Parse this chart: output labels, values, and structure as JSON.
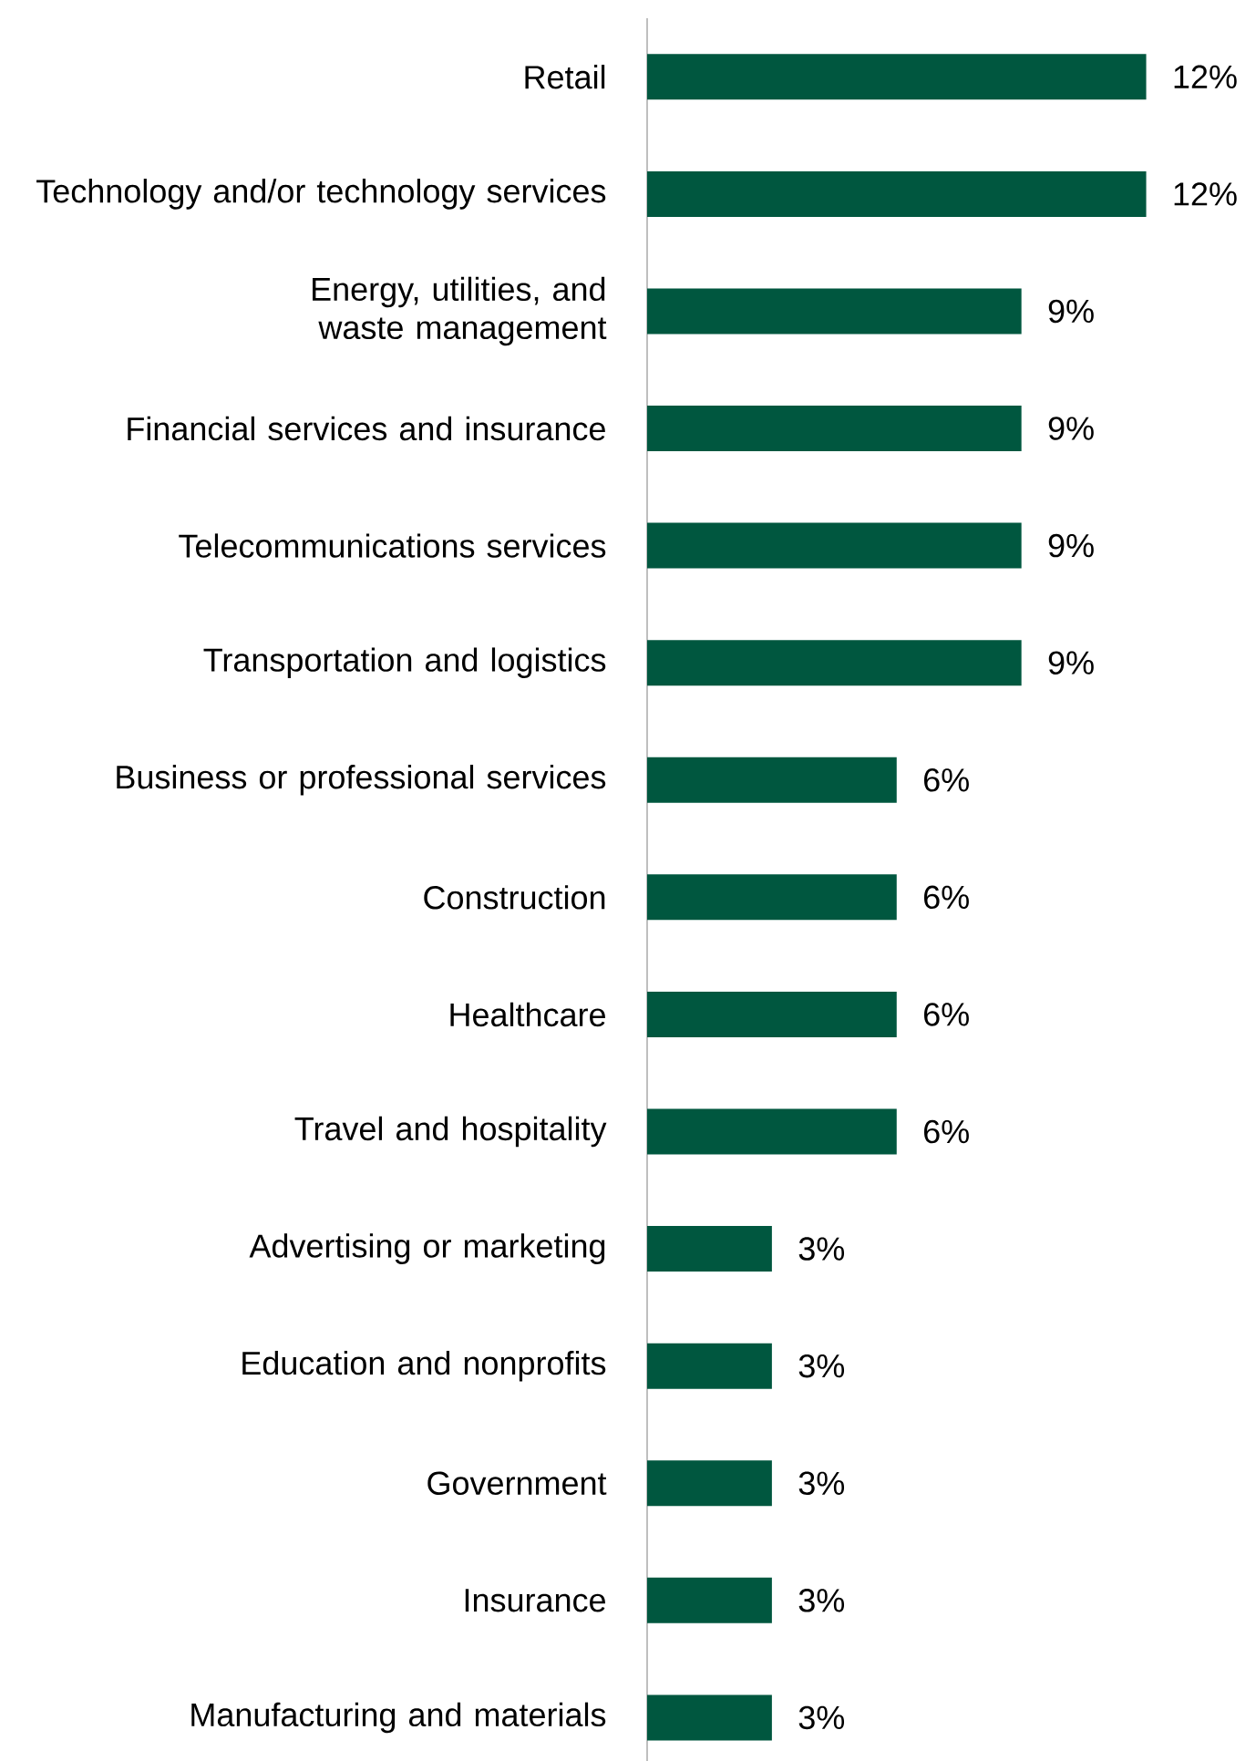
{
  "chart_data": {
    "type": "bar",
    "orientation": "horizontal",
    "color": "#00573f",
    "categories": [
      "Retail",
      "Technology and/or technology services",
      "Energy, utilities, and waste management",
      "Financial services and insurance",
      "Telecommunications services",
      "Transportation and logistics",
      "Business or professional services",
      "Construction",
      "Healthcare",
      "Travel and hospitality",
      "Advertising or marketing",
      "Education and nonprofits",
      "Government",
      "Insurance",
      "Manufacturing and materials"
    ],
    "values": [
      12,
      12,
      9,
      9,
      9,
      9,
      6,
      6,
      6,
      6,
      3,
      3,
      3,
      3,
      3
    ],
    "value_labels": [
      "12%",
      "12%",
      "9%",
      "9%",
      "9%",
      "9%",
      "6%",
      "6%",
      "6%",
      "6%",
      "3%",
      "3%",
      "3%",
      "3%",
      "3%"
    ]
  }
}
